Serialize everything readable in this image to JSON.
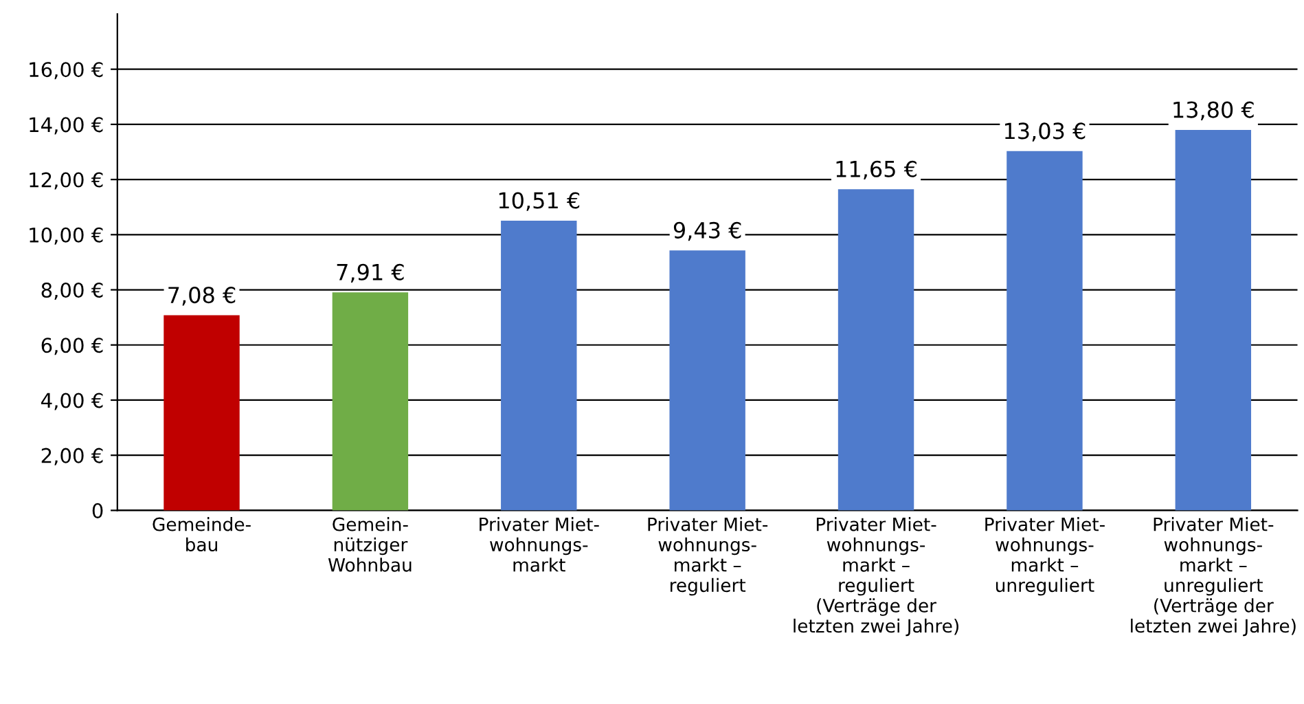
{
  "chart_data": {
    "type": "bar",
    "categories": [
      "Gemeinde-\nbau",
      "Gemein-\nnütziger\nWohnbau",
      "Privater Miet-\nwohnungs-\nmarkt",
      "Privater Miet-\nwohnungs-\nmarkt –\nreguliert",
      "Privater Miet-\nwohnungs-\nmarkt –\nreguliert\n(Verträge der\nletzten zwei Jahre)",
      "Privater Miet-\nwohnungs-\nmarkt –\nunreguliert",
      "Privater Miet-\nwohnungs-\nmarkt –\nunreguliert\n(Verträge der\nletzten zwei Jahre)"
    ],
    "values": [
      7.08,
      7.91,
      10.51,
      9.43,
      11.65,
      13.03,
      13.8
    ],
    "colors": [
      "#c00000",
      "#70ad47",
      "#4f7bcc",
      "#4f7bcc",
      "#4f7bcc",
      "#4f7bcc",
      "#4f7bcc"
    ],
    "value_labels": [
      "7,08 €",
      "7,91 €",
      "10,51 €",
      "9,43 €",
      "11,65 €",
      "13,03 €",
      "13,80 €"
    ],
    "ylim": [
      0,
      18
    ],
    "yticks": [
      0,
      {
        "value": 2,
        "label": "2,00 €"
      },
      {
        "value": 4,
        "label": "4,00 €"
      },
      {
        "value": 6,
        "label": "6,00 €"
      },
      {
        "value": 8,
        "label": "8,00 €"
      },
      {
        "value": 10,
        "label": "10,00 €"
      },
      {
        "value": 12,
        "label": "12,00 €"
      },
      {
        "value": 14,
        "label": "14,00 €"
      },
      {
        "value": 16,
        "label": "16,00 €"
      }
    ],
    "grid": "y",
    "legend": false
  }
}
